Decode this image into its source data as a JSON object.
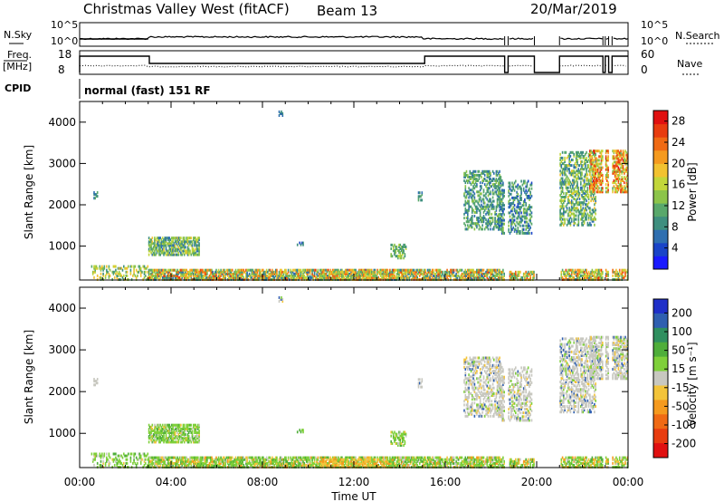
{
  "header": {
    "title": "Christmas Valley West (fitACF)",
    "beam": "Beam 13",
    "date": "20/Mar/2019"
  },
  "status": {
    "nsky_label": "N.Sky",
    "nsearch_label": "N.Search",
    "freq_label": "Freq.",
    "freq_unit": "[MHz]",
    "nave_label": "Nave",
    "cpid_label": "CPID",
    "cpid_text": "normal (fast) 151 RF",
    "noise_ticks": [
      "10^5",
      "10^0"
    ],
    "freq_ticks": [
      "18",
      "8"
    ],
    "nave_ticks": [
      "60",
      "0"
    ]
  },
  "chart_data": [
    {
      "type": "heatmap",
      "name": "power",
      "ylabel": "Slant Range [km]",
      "xlabel": "",
      "x_ticks": [
        "00:00",
        "04:00",
        "08:00",
        "12:00",
        "16:00",
        "20:00",
        "00:00"
      ],
      "y_ticks": [
        "1000",
        "2000",
        "3000",
        "4000"
      ],
      "ylim": [
        180,
        4500
      ],
      "colorbar_label": "Power [dB]",
      "colorbar_ticks": [
        "4",
        "8",
        "12",
        "16",
        "20",
        "24",
        "28"
      ],
      "colorbar_range": [
        0,
        30
      ],
      "colorbar_colors": [
        "#1a1aff",
        "#1a44c8",
        "#2f6fb0",
        "#3f8f7f",
        "#59a86b",
        "#8cc44a",
        "#c2d63a",
        "#f2c230",
        "#f59a1e",
        "#f06a14",
        "#e83c0f",
        "#e01010"
      ]
    },
    {
      "type": "heatmap",
      "name": "velocity",
      "ylabel": "Slant Range [km]",
      "xlabel": "Time UT",
      "x_ticks": [
        "00:00",
        "04:00",
        "08:00",
        "12:00",
        "16:00",
        "20:00",
        "00:00"
      ],
      "y_ticks": [
        "1000",
        "2000",
        "3000",
        "4000"
      ],
      "ylim": [
        180,
        4500
      ],
      "colorbar_label": "Velocity [m s⁻¹]",
      "colorbar_ticks": [
        "200",
        "100",
        "50",
        "15",
        "-15",
        "-50",
        "-100",
        "-200"
      ],
      "colorbar_colors": [
        "#1f2fc8",
        "#2f5fb0",
        "#2f8f5f",
        "#4fae3a",
        "#7fd03a",
        "#c8c8c0",
        "#f3c43a",
        "#f59a1e",
        "#f06a14",
        "#e83c0f",
        "#e01010"
      ]
    }
  ]
}
